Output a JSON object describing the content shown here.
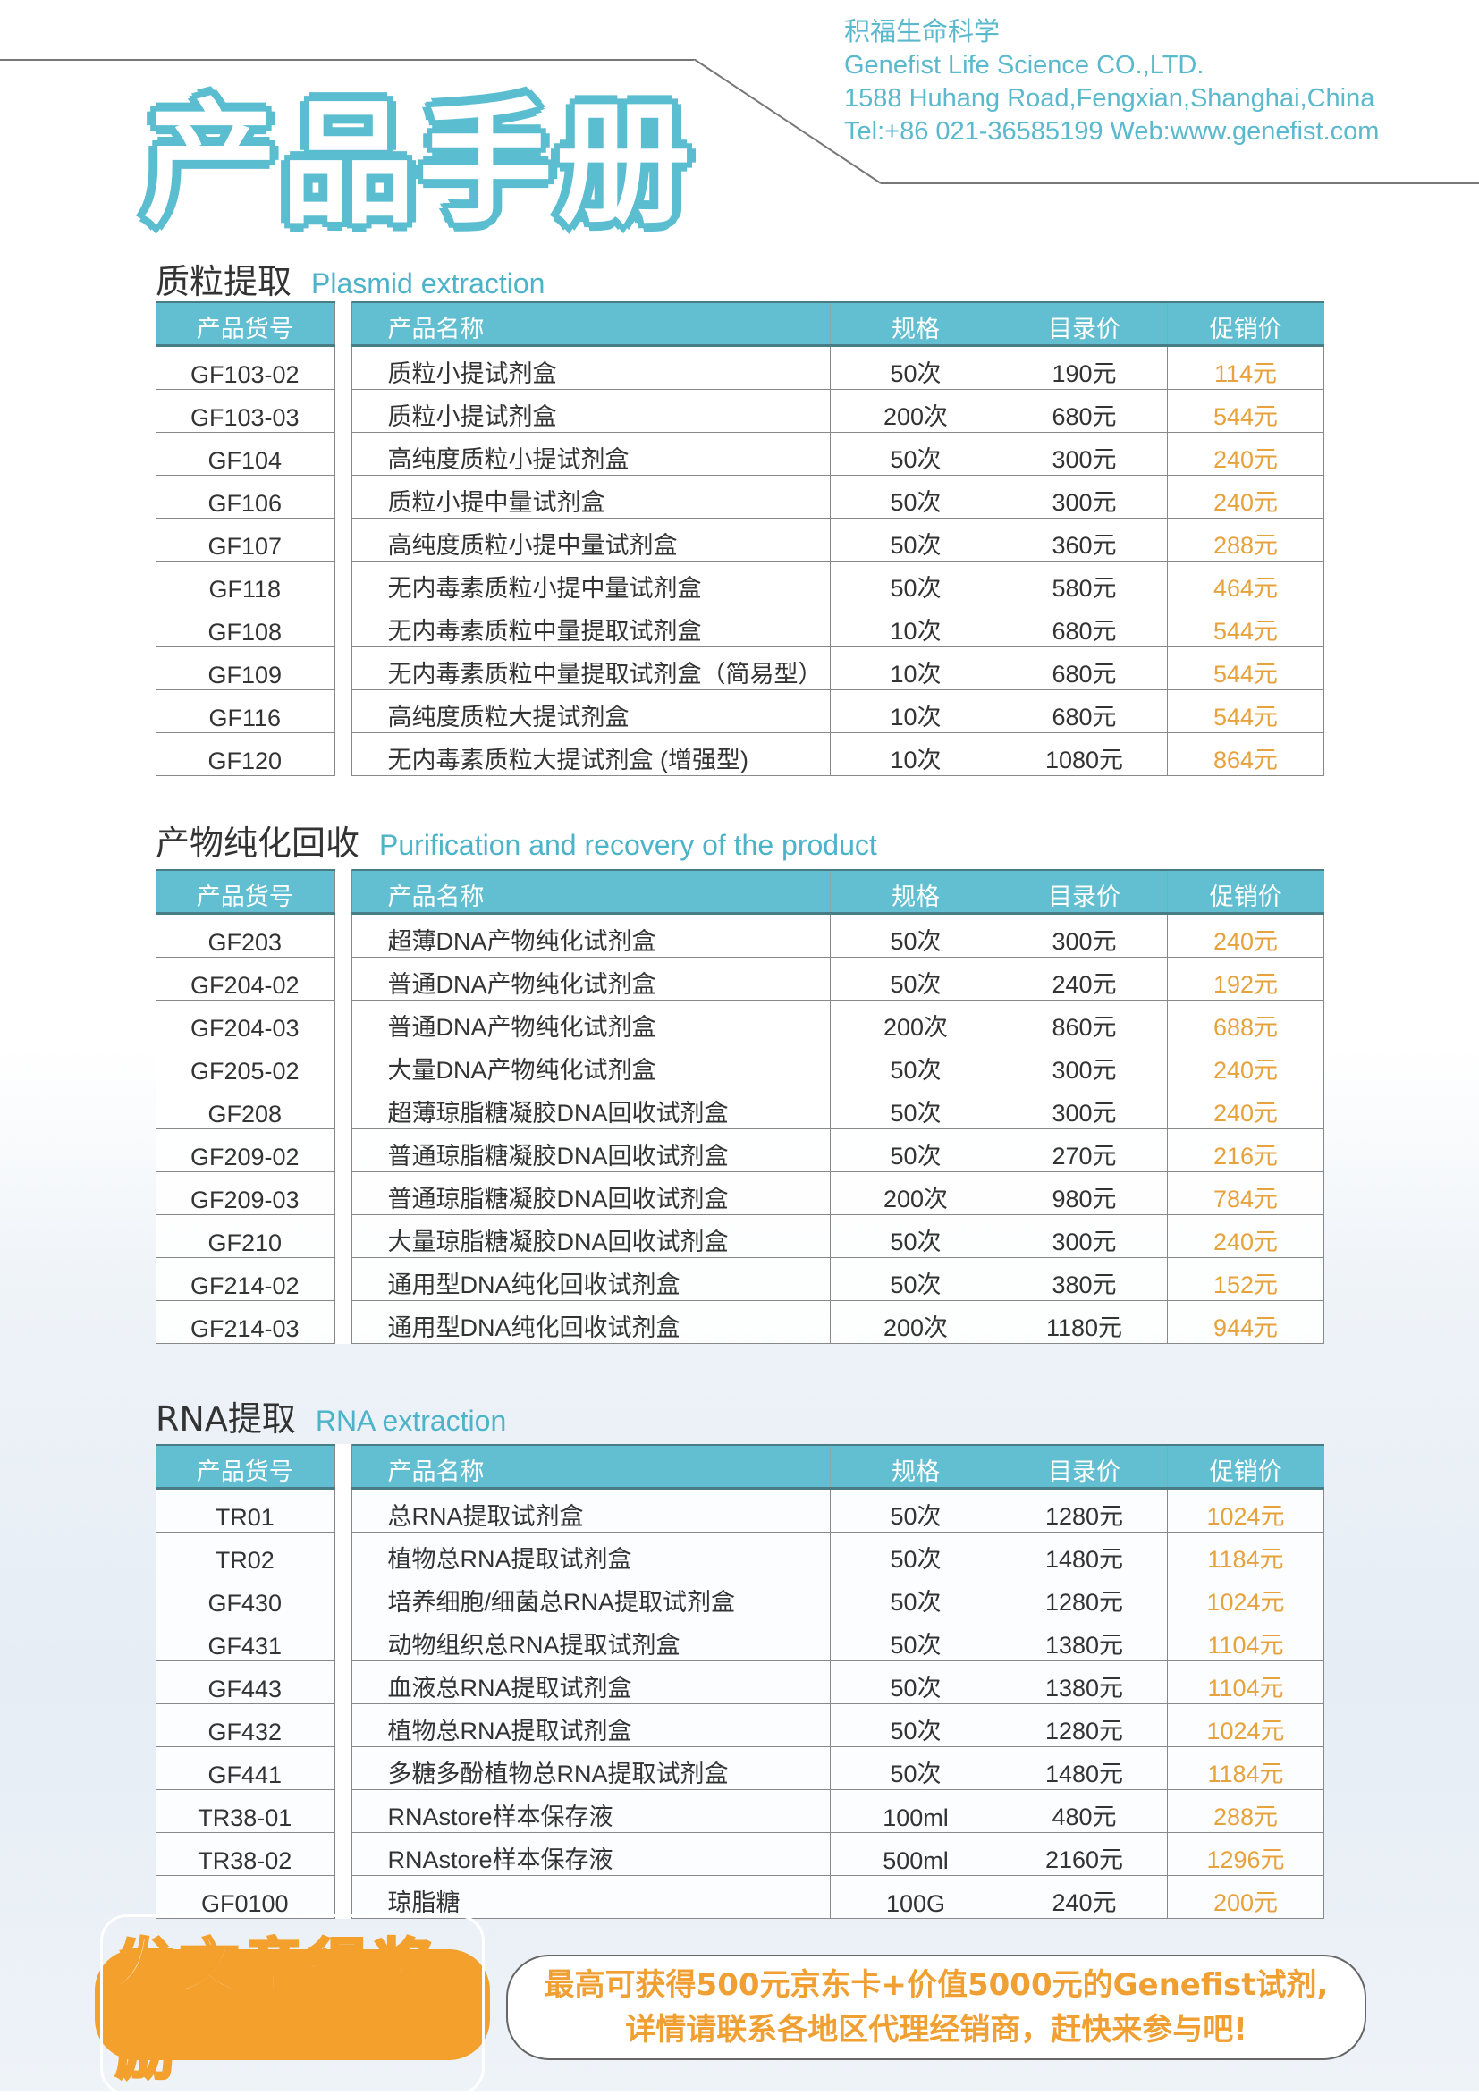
{
  "header": {
    "company_zh": "积福生命科学",
    "company_en": "Genefist Life Science CO.,LTD.",
    "address": "1588 Huhang Road,Fengxian,Shanghai,China",
    "contact": "Tel:+86 021-36585199 Web:www.genefist.com",
    "title": "产品手册"
  },
  "colors": {
    "accent": "#62bfd1",
    "promo_price": "#e6a23c",
    "badge": "#f3a02d"
  },
  "columns": [
    "产品货号",
    "产品名称",
    "规格",
    "目录价",
    "促销价"
  ],
  "sections": [
    {
      "title_zh": "质粒提取",
      "title_en": "Plasmid extraction",
      "rows": [
        [
          "GF103-02",
          "质粒小提试剂盒",
          "50次",
          "190元",
          "114元"
        ],
        [
          "GF103-03",
          "质粒小提试剂盒",
          "200次",
          "680元",
          "544元"
        ],
        [
          "GF104",
          "高纯度质粒小提试剂盒",
          "50次",
          "300元",
          "240元"
        ],
        [
          "GF106",
          "质粒小提中量试剂盒",
          "50次",
          "300元",
          "240元"
        ],
        [
          "GF107",
          "高纯度质粒小提中量试剂盒",
          "50次",
          "360元",
          "288元"
        ],
        [
          "GF118",
          "无内毒素质粒小提中量试剂盒",
          "50次",
          "580元",
          "464元"
        ],
        [
          "GF108",
          "无内毒素质粒中量提取试剂盒",
          "10次",
          "680元",
          "544元"
        ],
        [
          "GF109",
          "无内毒素质粒中量提取试剂盒（简易型）",
          "10次",
          "680元",
          "544元"
        ],
        [
          "GF116",
          "高纯度质粒大提试剂盒",
          "10次",
          "680元",
          "544元"
        ],
        [
          "GF120",
          "无内毒素质粒大提试剂盒 (增强型)",
          "10次",
          "1080元",
          "864元"
        ]
      ]
    },
    {
      "title_zh": "产物纯化回收",
      "title_en": "Purification and recovery of the product",
      "rows": [
        [
          "GF203",
          "超薄DNA产物纯化试剂盒",
          "50次",
          "300元",
          "240元"
        ],
        [
          "GF204-02",
          "普通DNA产物纯化试剂盒",
          "50次",
          "240元",
          "192元"
        ],
        [
          "GF204-03",
          "普通DNA产物纯化试剂盒",
          "200次",
          "860元",
          "688元"
        ],
        [
          "GF205-02",
          "大量DNA产物纯化试剂盒",
          "50次",
          "300元",
          "240元"
        ],
        [
          "GF208",
          "超薄琼脂糖凝胶DNA回收试剂盒",
          "50次",
          "300元",
          "240元"
        ],
        [
          "GF209-02",
          "普通琼脂糖凝胶DNA回收试剂盒",
          "50次",
          "270元",
          "216元"
        ],
        [
          "GF209-03",
          "普通琼脂糖凝胶DNA回收试剂盒",
          "200次",
          "980元",
          "784元"
        ],
        [
          "GF210",
          "大量琼脂糖凝胶DNA回收试剂盒",
          "50次",
          "300元",
          "240元"
        ],
        [
          "GF214-02",
          "通用型DNA纯化回收试剂盒",
          "50次",
          "380元",
          "152元"
        ],
        [
          "GF214-03",
          "通用型DNA纯化回收试剂盒",
          "200次",
          "1180元",
          "944元"
        ]
      ]
    },
    {
      "title_zh": "RNA提取",
      "title_en": "RNA extraction",
      "rows": [
        [
          "TR01",
          "总RNA提取试剂盒",
          "50次",
          "1280元",
          "1024元"
        ],
        [
          "TR02",
          "植物总RNA提取试剂盒",
          "50次",
          "1480元",
          "1184元"
        ],
        [
          "GF430",
          "培养细胞/细菌总RNA提取试剂盒",
          "50次",
          "1280元",
          "1024元"
        ],
        [
          "GF431",
          "动物组织总RNA提取试剂盒",
          "50次",
          "1380元",
          "1104元"
        ],
        [
          "GF443",
          "血液总RNA提取试剂盒",
          "50次",
          "1380元",
          "1104元"
        ],
        [
          "GF432",
          "植物总RNA提取试剂盒",
          "50次",
          "1280元",
          "1024元"
        ],
        [
          "GF441",
          "多糖多酚植物总RNA提取试剂盒",
          "50次",
          "1480元",
          "1184元"
        ],
        [
          "TR38-01",
          "RNAstore样本保存液",
          "100ml",
          "480元",
          "288元"
        ],
        [
          "TR38-02",
          "RNAstore样本保存液",
          "500ml",
          "2160元",
          "1296元"
        ],
        [
          "GF0100",
          "琼脂糖",
          "100G",
          "240元",
          "200元"
        ]
      ]
    }
  ],
  "promo": {
    "badge": "发文章得奖励",
    "line1": "最高可获得500元京东卡+价值5000元的Genefist试剂,",
    "line2": "详情请联系各地区代理经销商，赶快来参与吧!"
  }
}
